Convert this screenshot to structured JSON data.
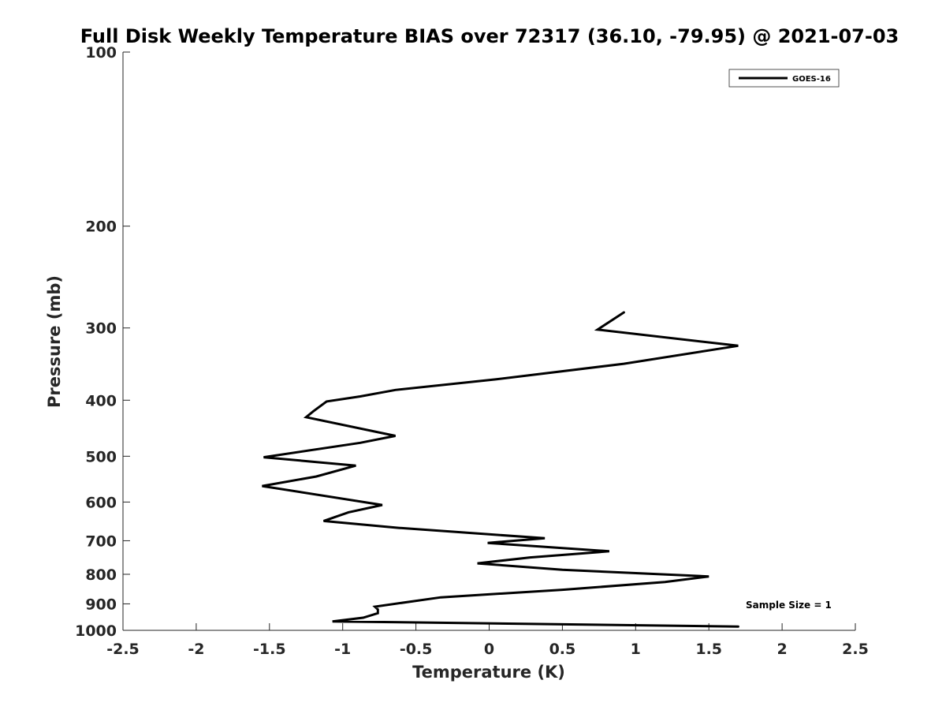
{
  "chart_data": {
    "type": "line",
    "title": "Full Disk Weekly Temperature BIAS over 72317 (36.10, -79.95) @ 2021-07-03",
    "xlabel": "Temperature (K)",
    "ylabel": "Pressure (mb)",
    "xlim": [
      -2.5,
      2.5
    ],
    "ylim": [
      100,
      1000
    ],
    "y_scale": "log",
    "y_reversed": true,
    "x_ticks": [
      -2.5,
      -2,
      -1.5,
      -1,
      -0.5,
      0,
      0.5,
      1,
      1.5,
      2,
      2.5
    ],
    "x_tick_labels": [
      "-2.5",
      "-2",
      "-1.5",
      "-1",
      "-0.5",
      "0",
      "0.5",
      "1",
      "1.5",
      "2",
      "2.5"
    ],
    "y_ticks": [
      100,
      200,
      300,
      400,
      500,
      600,
      700,
      800,
      900,
      1000
    ],
    "y_tick_labels": [
      "100",
      "200",
      "300",
      "400",
      "500",
      "600",
      "700",
      "800",
      "900",
      "1000"
    ],
    "grid": false,
    "legend": {
      "placement": "top-right",
      "entries": [
        "GOES-16"
      ]
    },
    "series": [
      {
        "name": "GOES-16",
        "color": "#000000",
        "x": [
          0.92,
          0.74,
          1.7,
          0.92,
          0.05,
          -0.64,
          -0.88,
          -1.11,
          -1.2,
          -1.25,
          -0.64,
          -0.88,
          -1.54,
          -0.91,
          -1.18,
          -1.55,
          -0.73,
          -0.96,
          -1.13,
          -0.62,
          0.38,
          -0.01,
          0.82,
          0.28,
          -0.08,
          0.5,
          1.5,
          1.2,
          0.5,
          -0.33,
          -0.78,
          -0.76,
          -0.76,
          -0.86,
          -1.07,
          1.7
        ],
        "y": [
          282,
          302,
          322,
          346,
          368,
          384,
          394,
          402,
          418,
          428,
          461,
          474,
          502,
          519,
          542,
          563,
          607,
          625,
          647,
          665,
          693,
          706,
          730,
          748,
          766,
          786,
          807,
          825,
          851,
          877,
          910,
          920,
          934,
          951,
          965,
          985
        ]
      }
    ],
    "annotations": [
      "Sample Size = 1"
    ]
  }
}
